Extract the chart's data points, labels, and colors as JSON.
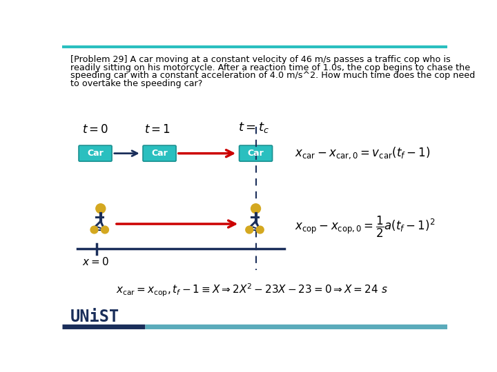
{
  "problem_text_line1": "[Problem 29] A car moving at a constant velocity of 46 m/s passes a traffic cop who is",
  "problem_text_line2": "readily sitting on his motorcycle. After a reaction time of 1.0s, the cop begins to chase the",
  "problem_text_line3": "speeding car with a constant acceleration of 4.0 m/s^2. How much time does the cop need",
  "problem_text_line4": "to overtake the speeding car?",
  "teal_color": "#2ABFBF",
  "teal_dark": "#1a9090",
  "car_box_color": "#2ABFBF",
  "car_box_border": "#1a9090",
  "dark_navy": "#1a2e5a",
  "red_color": "#cc0000",
  "gold_color": "#d4a820",
  "timeline_color": "#1a2e5a",
  "dashed_color": "#1a2e5a",
  "bottom_bar_color1": "#1a2e5a",
  "bottom_bar_color2": "#5aabbb",
  "unist_color": "#1a2e5a"
}
